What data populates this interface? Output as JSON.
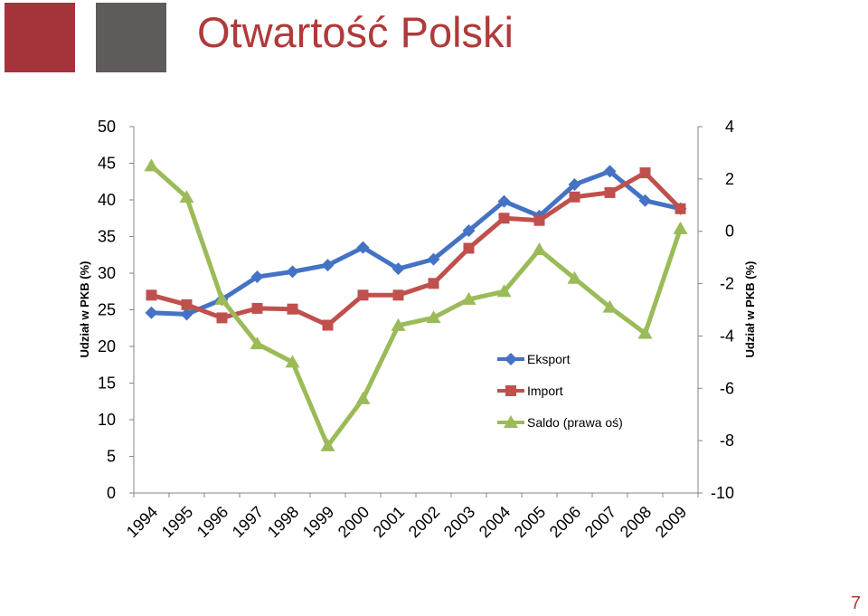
{
  "slide": {
    "title": "Otwartość Polski",
    "page_number": "7",
    "colors": {
      "accent_red": "#a5343a",
      "accent_gray": "#5f5b5a",
      "title": "#b03a3a"
    }
  },
  "chart_data": {
    "type": "line",
    "title": "",
    "categories": [
      "1994",
      "1995",
      "1996",
      "1997",
      "1998",
      "1999",
      "2000",
      "2001",
      "2002",
      "2003",
      "2004",
      "2005",
      "2006",
      "2007",
      "2008",
      "2009"
    ],
    "ylabel": "Udział w PKB (%)",
    "ylim": [
      0,
      50
    ],
    "yticks": [
      0,
      5,
      10,
      15,
      20,
      25,
      30,
      35,
      40,
      45,
      50
    ],
    "y2label": "Udział w PKB (%)",
    "y2lim": [
      -10,
      4
    ],
    "y2ticks": [
      -10,
      -8,
      -6,
      -4,
      -2,
      0,
      2,
      4
    ],
    "grid": false,
    "legend_position": "center-right",
    "series": [
      {
        "name": "Eksport",
        "axis": "left",
        "color": "#4472c4",
        "marker": "diamond",
        "values": [
          24.6,
          24.4,
          26.4,
          29.5,
          30.2,
          31.1,
          33.5,
          30.6,
          31.9,
          35.8,
          39.8,
          37.8,
          42.1,
          43.9,
          39.9,
          38.8
        ]
      },
      {
        "name": "Import",
        "axis": "left",
        "color": "#c0504d",
        "marker": "square",
        "values": [
          27.0,
          25.7,
          23.9,
          25.2,
          25.1,
          22.9,
          27.0,
          27.0,
          28.6,
          33.4,
          37.5,
          37.2,
          40.4,
          41.0,
          43.7,
          38.8
        ]
      },
      {
        "name": "Saldo (prawa oś)",
        "axis": "right",
        "color": "#9bbb59",
        "marker": "triangle",
        "values": [
          2.5,
          1.3,
          -2.6,
          -4.3,
          -5.0,
          -8.2,
          -6.4,
          -3.6,
          -3.3,
          -2.6,
          -2.3,
          -0.7,
          -1.8,
          -2.9,
          -3.9,
          0.1
        ]
      }
    ]
  }
}
